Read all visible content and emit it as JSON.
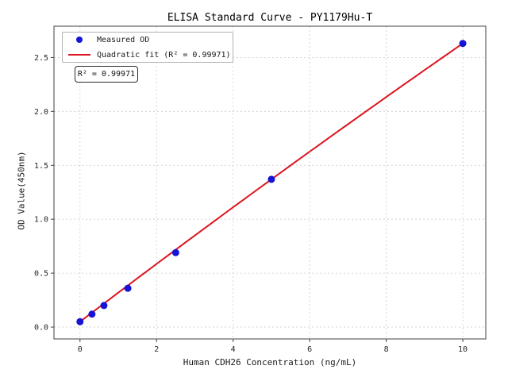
{
  "chart_data": {
    "type": "scatter",
    "title": "ELISA Standard Curve - PY1179Hu-T",
    "xlabel": "Human CDH26 Concentration (ng/mL)",
    "ylabel": "OD Value(450nm)",
    "xlim": [
      -0.68,
      10.6
    ],
    "ylim": [
      -0.11,
      2.79
    ],
    "xticks": [
      0,
      2,
      4,
      6,
      8,
      10
    ],
    "yticks": [
      0.0,
      0.5,
      1.0,
      1.5,
      2.0,
      2.5
    ],
    "grid": true,
    "grid_style": "dashed",
    "annotation": "R² = 0.99971",
    "r_squared": 0.99971,
    "legend": {
      "position": "upper-left",
      "entries": [
        {
          "label": "Measured OD",
          "marker": "dot",
          "color": "#1414d6"
        },
        {
          "label": "Quadratic fit (R² = 0.99971)",
          "marker": "line",
          "color": "#dc1420"
        }
      ]
    },
    "series": [
      {
        "name": "Measured OD",
        "type": "scatter",
        "color": "#1414d6",
        "x": [
          0,
          0.312,
          0.625,
          1.25,
          2.5,
          5,
          10
        ],
        "y": [
          0.05,
          0.12,
          0.2,
          0.36,
          0.69,
          1.37,
          2.63
        ]
      },
      {
        "name": "Quadratic fit",
        "type": "line",
        "color": "#dc1420",
        "fit_coefficients": {
          "intercept": 0.05,
          "linear": 0.27,
          "quadratic": -0.0012
        },
        "x_start": 0,
        "x_end": 10
      }
    ]
  },
  "style_colors": {
    "grid": "#cccccc",
    "spine": "#404040",
    "tick_label": "#262626",
    "background": "#ffffff"
  }
}
